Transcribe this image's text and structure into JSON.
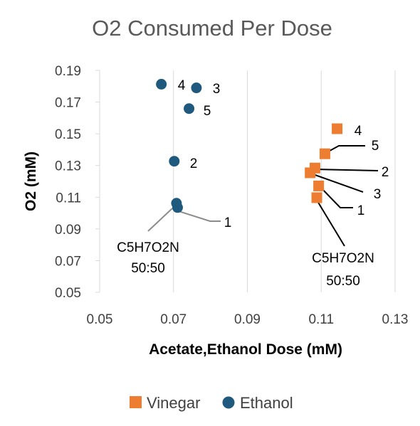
{
  "chart_data": {
    "type": "scatter",
    "title": "O2 Consumed Per Dose",
    "xlabel": "Acetate,Ethanol Dose (mM)",
    "ylabel": "O2 (mM)",
    "xlim": [
      0.05,
      0.13
    ],
    "ylim": [
      0.05,
      0.19
    ],
    "xticks": [
      "0.05",
      "0.07",
      "0.09",
      "0.11",
      "0.13"
    ],
    "yticks": [
      "0.05",
      "0.07",
      "0.09",
      "0.11",
      "0.13",
      "0.15",
      "0.17",
      "0.19"
    ],
    "grid": "vertical",
    "legend_position": "bottom",
    "series": [
      {
        "name": "Vinegar",
        "color": "#ed7d31",
        "marker": "square",
        "points": [
          {
            "x": 0.1143,
            "y": 0.1532,
            "label": "4"
          },
          {
            "x": 0.111,
            "y": 0.1374,
            "label": "5"
          },
          {
            "x": 0.1083,
            "y": 0.1284,
            "label": "2"
          },
          {
            "x": 0.107,
            "y": 0.1254,
            "label": "3"
          },
          {
            "x": 0.1093,
            "y": 0.1171,
            "label": "1"
          },
          {
            "x": 0.1088,
            "y": 0.1097,
            "label": "C5H7O2N 50:50"
          }
        ]
      },
      {
        "name": "Ethanol",
        "color": "#1f5a7e",
        "marker": "circle",
        "points": [
          {
            "x": 0.0667,
            "y": 0.1813,
            "label": "4"
          },
          {
            "x": 0.0762,
            "y": 0.179,
            "label": "3"
          },
          {
            "x": 0.0742,
            "y": 0.1659,
            "label": "5"
          },
          {
            "x": 0.0702,
            "y": 0.1327,
            "label": "2"
          },
          {
            "x": 0.0708,
            "y": 0.1062,
            "label": ""
          },
          {
            "x": 0.0711,
            "y": 0.1035,
            "label": "1 / C5H7O2N 50:50"
          }
        ]
      }
    ],
    "annotations": {
      "vinegar_labels": [
        "4",
        "5",
        "2",
        "3",
        "1"
      ],
      "ethanol_labels": [
        "4",
        "3",
        "5",
        "2",
        "1"
      ],
      "compound_line1": "C5H7O2N",
      "compound_line2": "50:50"
    }
  }
}
